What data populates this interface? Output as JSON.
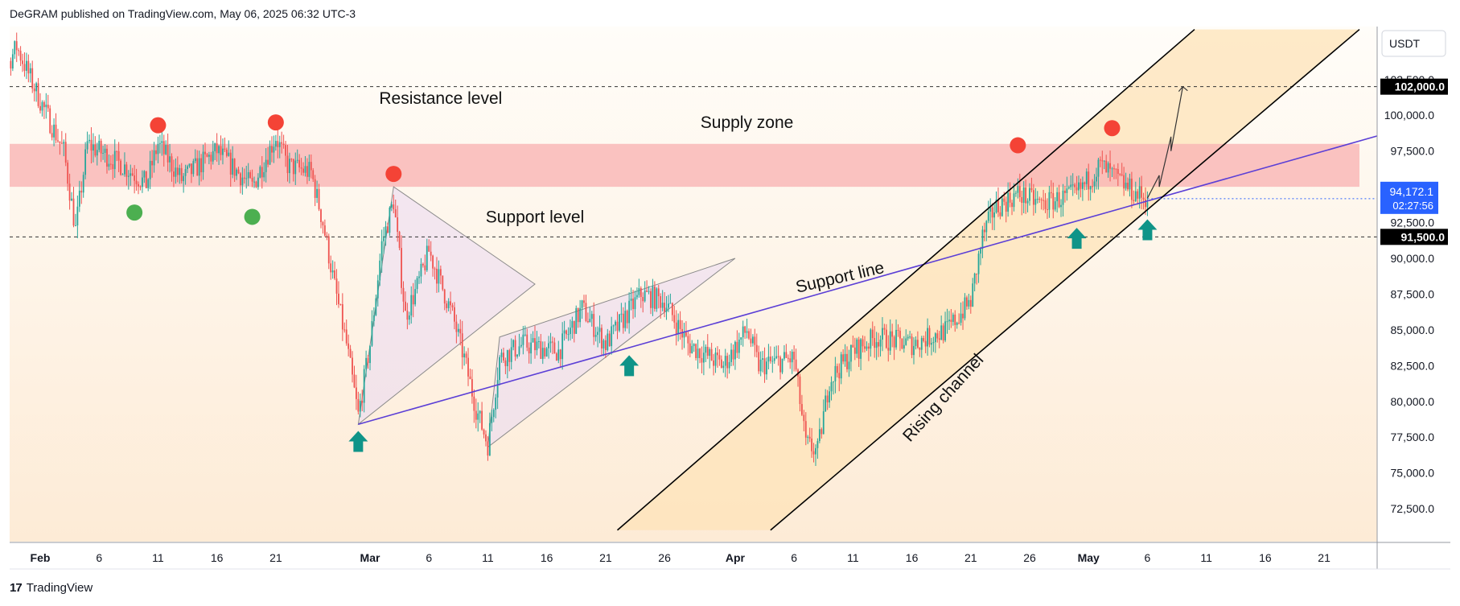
{
  "header": {
    "publisher_line": "DeGRAM published on TradingView.com, May 06, 2025 06:32 UTC-3"
  },
  "footer": {
    "logo_mark": "17",
    "logo_text": "TradingView"
  },
  "colors": {
    "up_candle": "#26a69a",
    "down_candle": "#ef5350",
    "supply_zone": "#f9b4b4",
    "support_line": "#5b3fd6",
    "channel_fill": "#fde3b8",
    "marker_red": "#f44336",
    "marker_green": "#4caf50",
    "arrow_teal": "#0f9488",
    "price_badge": "#2962ff"
  },
  "chart_data": {
    "type": "candlestick",
    "symbol_currency": "USDT",
    "title": "",
    "xlabel": "",
    "ylabel": "",
    "ylim": [
      70200,
      106200
    ],
    "y_ticks": [
      "72,500.0",
      "75,000.0",
      "77,500.0",
      "80,000.0",
      "82,500.0",
      "85,000.0",
      "87,500.0",
      "90,000.0",
      "92,500.0",
      "95,000.0",
      "97,500.0",
      "100,000.0",
      "102,500.0"
    ],
    "x_ticks": [
      "Feb",
      "6",
      "11",
      "16",
      "21",
      "Mar",
      "6",
      "11",
      "16",
      "21",
      "26",
      "Apr",
      "6",
      "11",
      "16",
      "21",
      "26",
      "May",
      "6",
      "11",
      "16",
      "21"
    ],
    "current_price": "94,172.1",
    "countdown": "02:27:56",
    "levels": [
      {
        "value": 102000,
        "label": "102,000.0",
        "style": "dashed"
      },
      {
        "value": 91500,
        "label": "91,500.0",
        "style": "dashed"
      }
    ],
    "supply_zone": {
      "from": 95000,
      "to": 98000
    },
    "price_path": [
      {
        "date": "2025-01-28",
        "price": 101500
      },
      {
        "date": "2025-01-30",
        "price": 104800
      },
      {
        "date": "2025-02-01",
        "price": 101000
      },
      {
        "date": "2025-02-03",
        "price": 97500
      },
      {
        "date": "2025-02-04",
        "price": 92000
      },
      {
        "date": "2025-02-05",
        "price": 98000
      },
      {
        "date": "2025-02-08",
        "price": 96500
      },
      {
        "date": "2025-02-10",
        "price": 95200
      },
      {
        "date": "2025-02-11",
        "price": 98000
      },
      {
        "date": "2025-02-13",
        "price": 95500
      },
      {
        "date": "2025-02-16",
        "price": 97500
      },
      {
        "date": "2025-02-19",
        "price": 95000
      },
      {
        "date": "2025-02-21",
        "price": 98500
      },
      {
        "date": "2025-02-22",
        "price": 96500
      },
      {
        "date": "2025-02-24",
        "price": 96000
      },
      {
        "date": "2025-02-25",
        "price": 92500
      },
      {
        "date": "2025-02-26",
        "price": 88000
      },
      {
        "date": "2025-02-27",
        "price": 84000
      },
      {
        "date": "2025-02-28",
        "price": 79000
      },
      {
        "date": "2025-03-01",
        "price": 84000
      },
      {
        "date": "2025-03-02",
        "price": 91000
      },
      {
        "date": "2025-03-03",
        "price": 94000
      },
      {
        "date": "2025-03-04",
        "price": 86000
      },
      {
        "date": "2025-03-05",
        "price": 88000
      },
      {
        "date": "2025-03-06",
        "price": 90500
      },
      {
        "date": "2025-03-08",
        "price": 86000
      },
      {
        "date": "2025-03-09",
        "price": 83000
      },
      {
        "date": "2025-03-10",
        "price": 79500
      },
      {
        "date": "2025-03-11",
        "price": 77000
      },
      {
        "date": "2025-03-12",
        "price": 83000
      },
      {
        "date": "2025-03-14",
        "price": 84000
      },
      {
        "date": "2025-03-17",
        "price": 83500
      },
      {
        "date": "2025-03-19",
        "price": 86500
      },
      {
        "date": "2025-03-21",
        "price": 84000
      },
      {
        "date": "2025-03-24",
        "price": 87500
      },
      {
        "date": "2025-03-26",
        "price": 87000
      },
      {
        "date": "2025-03-28",
        "price": 84000
      },
      {
        "date": "2025-03-31",
        "price": 82500
      },
      {
        "date": "2025-04-02",
        "price": 85000
      },
      {
        "date": "2025-04-03",
        "price": 82500
      },
      {
        "date": "2025-04-06",
        "price": 83000
      },
      {
        "date": "2025-04-07",
        "price": 77000
      },
      {
        "date": "2025-04-08",
        "price": 76500
      },
      {
        "date": "2025-04-09",
        "price": 81500
      },
      {
        "date": "2025-04-11",
        "price": 83500
      },
      {
        "date": "2025-04-13",
        "price": 84500
      },
      {
        "date": "2025-04-16",
        "price": 84000
      },
      {
        "date": "2025-04-19",
        "price": 85000
      },
      {
        "date": "2025-04-21",
        "price": 87000
      },
      {
        "date": "2025-04-22",
        "price": 91500
      },
      {
        "date": "2025-04-23",
        "price": 93500
      },
      {
        "date": "2025-04-25",
        "price": 94500
      },
      {
        "date": "2025-04-27",
        "price": 93800
      },
      {
        "date": "2025-04-30",
        "price": 94500
      },
      {
        "date": "2025-05-02",
        "price": 96500
      },
      {
        "date": "2025-05-03",
        "price": 95800
      },
      {
        "date": "2025-05-05",
        "price": 94500
      },
      {
        "date": "2025-05-06",
        "price": 94172
      }
    ],
    "annotations": {
      "texts": [
        {
          "text": "Resistance level",
          "date": "2025-03-07",
          "price": 100800
        },
        {
          "text": "Supply zone",
          "date": "2025-04-02",
          "price": 99100
        },
        {
          "text": "Support level",
          "date": "2025-03-15",
          "price": 92500
        },
        {
          "text": "Support line",
          "date": "2025-04-10",
          "price": 88300,
          "angle": -13
        },
        {
          "text": "Rising channel",
          "date": "2025-04-19",
          "price": 80000,
          "angle": -48
        }
      ],
      "red_markers": [
        {
          "date": "2025-02-11",
          "price": 99300
        },
        {
          "date": "2025-02-21",
          "price": 99500
        },
        {
          "date": "2025-03-03",
          "price": 95900
        },
        {
          "date": "2025-04-25",
          "price": 97900
        },
        {
          "date": "2025-05-03",
          "price": 99100
        }
      ],
      "green_markers": [
        {
          "date": "2025-02-09",
          "price": 93200
        },
        {
          "date": "2025-02-19",
          "price": 92900
        }
      ],
      "up_arrows": [
        {
          "date": "2025-02-28",
          "price": 77200
        },
        {
          "date": "2025-03-23",
          "price": 82500
        },
        {
          "date": "2025-04-30",
          "price": 91400
        },
        {
          "date": "2025-05-06",
          "price": 92000
        }
      ],
      "support_line": [
        {
          "date": "2025-02-28",
          "price": 78400
        },
        {
          "date": "2025-05-27",
          "price": 98900
        }
      ],
      "channel_upper": [
        {
          "date": "2025-03-22",
          "price": 71000
        },
        {
          "date": "2025-05-10",
          "price": 106000
        }
      ],
      "channel_lower": [
        {
          "date": "2025-04-04",
          "price": 71000
        },
        {
          "date": "2025-05-24",
          "price": 106000
        }
      ],
      "triangle_1": [
        {
          "date": "2025-02-28",
          "price": 78400
        },
        {
          "date": "2025-03-03",
          "price": 95000
        },
        {
          "date": "2025-03-15",
          "price": 88200
        }
      ],
      "triangle_2": [
        {
          "date": "2025-03-11",
          "price": 76800
        },
        {
          "date": "2025-03-12",
          "price": 84500
        },
        {
          "date": "2025-04-01",
          "price": 90000
        }
      ],
      "projection": [
        {
          "date": "2025-05-06",
          "price": 94200
        },
        {
          "date": "2025-05-07",
          "price": 95800
        },
        {
          "date": "2025-05-07",
          "price": 95000
        },
        {
          "date": "2025-05-08",
          "price": 98500
        },
        {
          "date": "2025-05-08",
          "price": 97500
        },
        {
          "date": "2025-05-09",
          "price": 102000
        }
      ]
    }
  }
}
